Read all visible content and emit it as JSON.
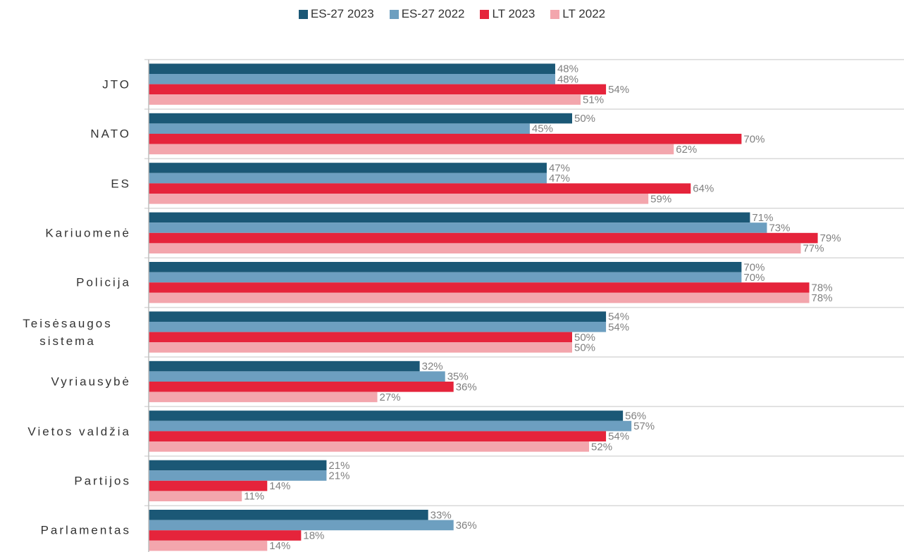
{
  "chart_data": {
    "type": "bar",
    "orientation": "horizontal",
    "legend": "top",
    "categories": [
      "JTO",
      "NATO",
      "ES",
      "Kariuomenė",
      "Policija",
      "Teisėsaugos sistema",
      "Vyriausybė",
      "Vietos valdžia",
      "Partijos",
      "Parlamentas"
    ],
    "series": [
      {
        "name": "ES-27 2023",
        "color": "#1b5876",
        "values": [
          48,
          50,
          47,
          71,
          70,
          54,
          32,
          56,
          21,
          33
        ],
        "value_labels": [
          "48%",
          "50%",
          "47%",
          "71%",
          "70%",
          "54%",
          "32%",
          "56%",
          "21%",
          "33%"
        ]
      },
      {
        "name": "ES-27 2022",
        "color": "#6d9fc0",
        "values": [
          48,
          45,
          47,
          73,
          70,
          54,
          35,
          57,
          21,
          36
        ],
        "value_labels": [
          "48%",
          "45%",
          "47%",
          "73%",
          "70%",
          "54%",
          "35%",
          "57%",
          "21%",
          "36%"
        ]
      },
      {
        "name": "LT 2023",
        "color": "#e5243b",
        "values": [
          54,
          70,
          64,
          79,
          78,
          50,
          36,
          54,
          14,
          18
        ],
        "value_labels": [
          "54%",
          "70%",
          "64%",
          "79%",
          "78%",
          "50%",
          "36%",
          "54%",
          "14%",
          "18%"
        ]
      },
      {
        "name": "LT 2022",
        "color": "#f3a6ad",
        "values": [
          51,
          62,
          59,
          77,
          78,
          50,
          27,
          52,
          11,
          14
        ],
        "value_labels": [
          "51%",
          "62%",
          "59%",
          "77%",
          "78%",
          "50%",
          "27%",
          "52%",
          "11%",
          "14%"
        ]
      }
    ]
  }
}
